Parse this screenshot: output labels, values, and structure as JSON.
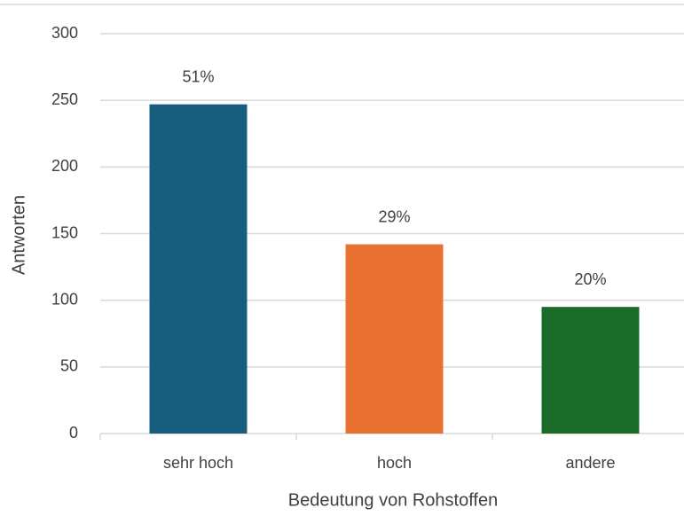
{
  "chart_data": {
    "type": "bar",
    "x_label": "Bedeutung von Rohstoffen",
    "y_label": "Antworten",
    "categories": [
      "sehr hoch",
      "hoch",
      "andere"
    ],
    "values": [
      247,
      142,
      95
    ],
    "data_labels": [
      "51%",
      "29%",
      "20%"
    ],
    "colors": [
      "#175d7e",
      "#e97132",
      "#1a6b27"
    ],
    "ylim": [
      0,
      300
    ],
    "yticks": [
      0,
      50,
      100,
      150,
      200,
      250,
      300
    ],
    "grid": true
  }
}
